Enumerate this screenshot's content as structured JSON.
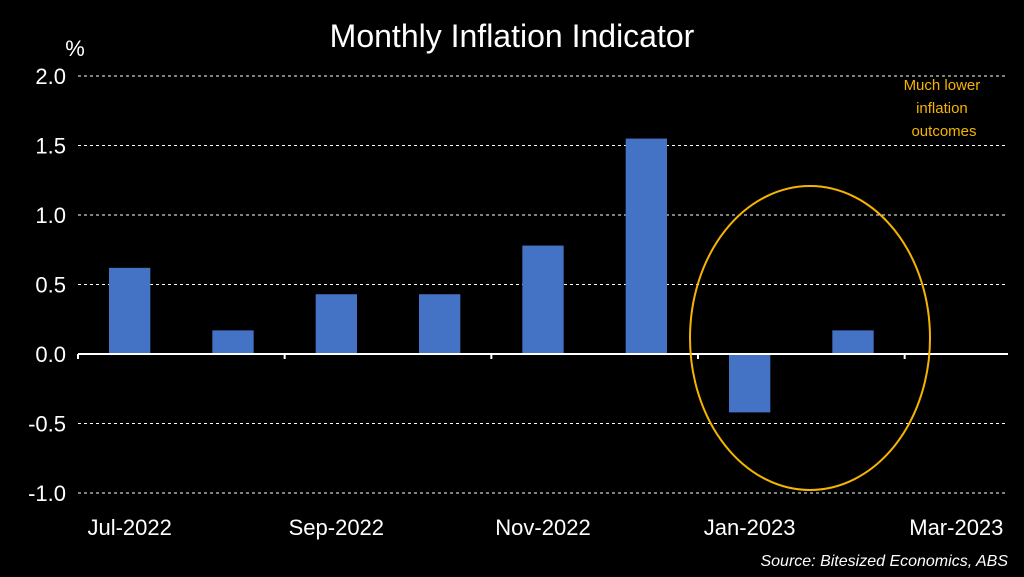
{
  "chart_data": {
    "type": "bar",
    "title": "Monthly Inflation Indicator",
    "ylabel": "%",
    "xlabel": "",
    "ylim": [
      -1.0,
      2.0
    ],
    "yticks": [
      "2.0",
      "1.5",
      "1.0",
      "0.5",
      "0.0",
      "-0.5",
      "-1.0"
    ],
    "grid": true,
    "categories": [
      "Jul-2022",
      "Aug-2022",
      "Sep-2022",
      "Oct-2022",
      "Nov-2022",
      "Dec-2022",
      "Jan-2023",
      "Feb-2023",
      "Mar-2023"
    ],
    "x_tick_labels": [
      "Jul-2022",
      "Sep-2022",
      "Nov-2022",
      "Jan-2023",
      "Mar-2023"
    ],
    "values": [
      0.62,
      0.17,
      0.43,
      0.43,
      0.78,
      1.55,
      -0.42,
      0.17,
      null
    ],
    "annotation": "Much lower inflation outcomes",
    "annotation_lines": [
      "Much lower",
      "inflation",
      "outcomes"
    ],
    "source": "Source: Bitesized Economics, ABS",
    "colors": {
      "bar": "#4472C4",
      "annotation": "#F5B400",
      "background": "#000000",
      "text": "#FFFFFF"
    }
  }
}
